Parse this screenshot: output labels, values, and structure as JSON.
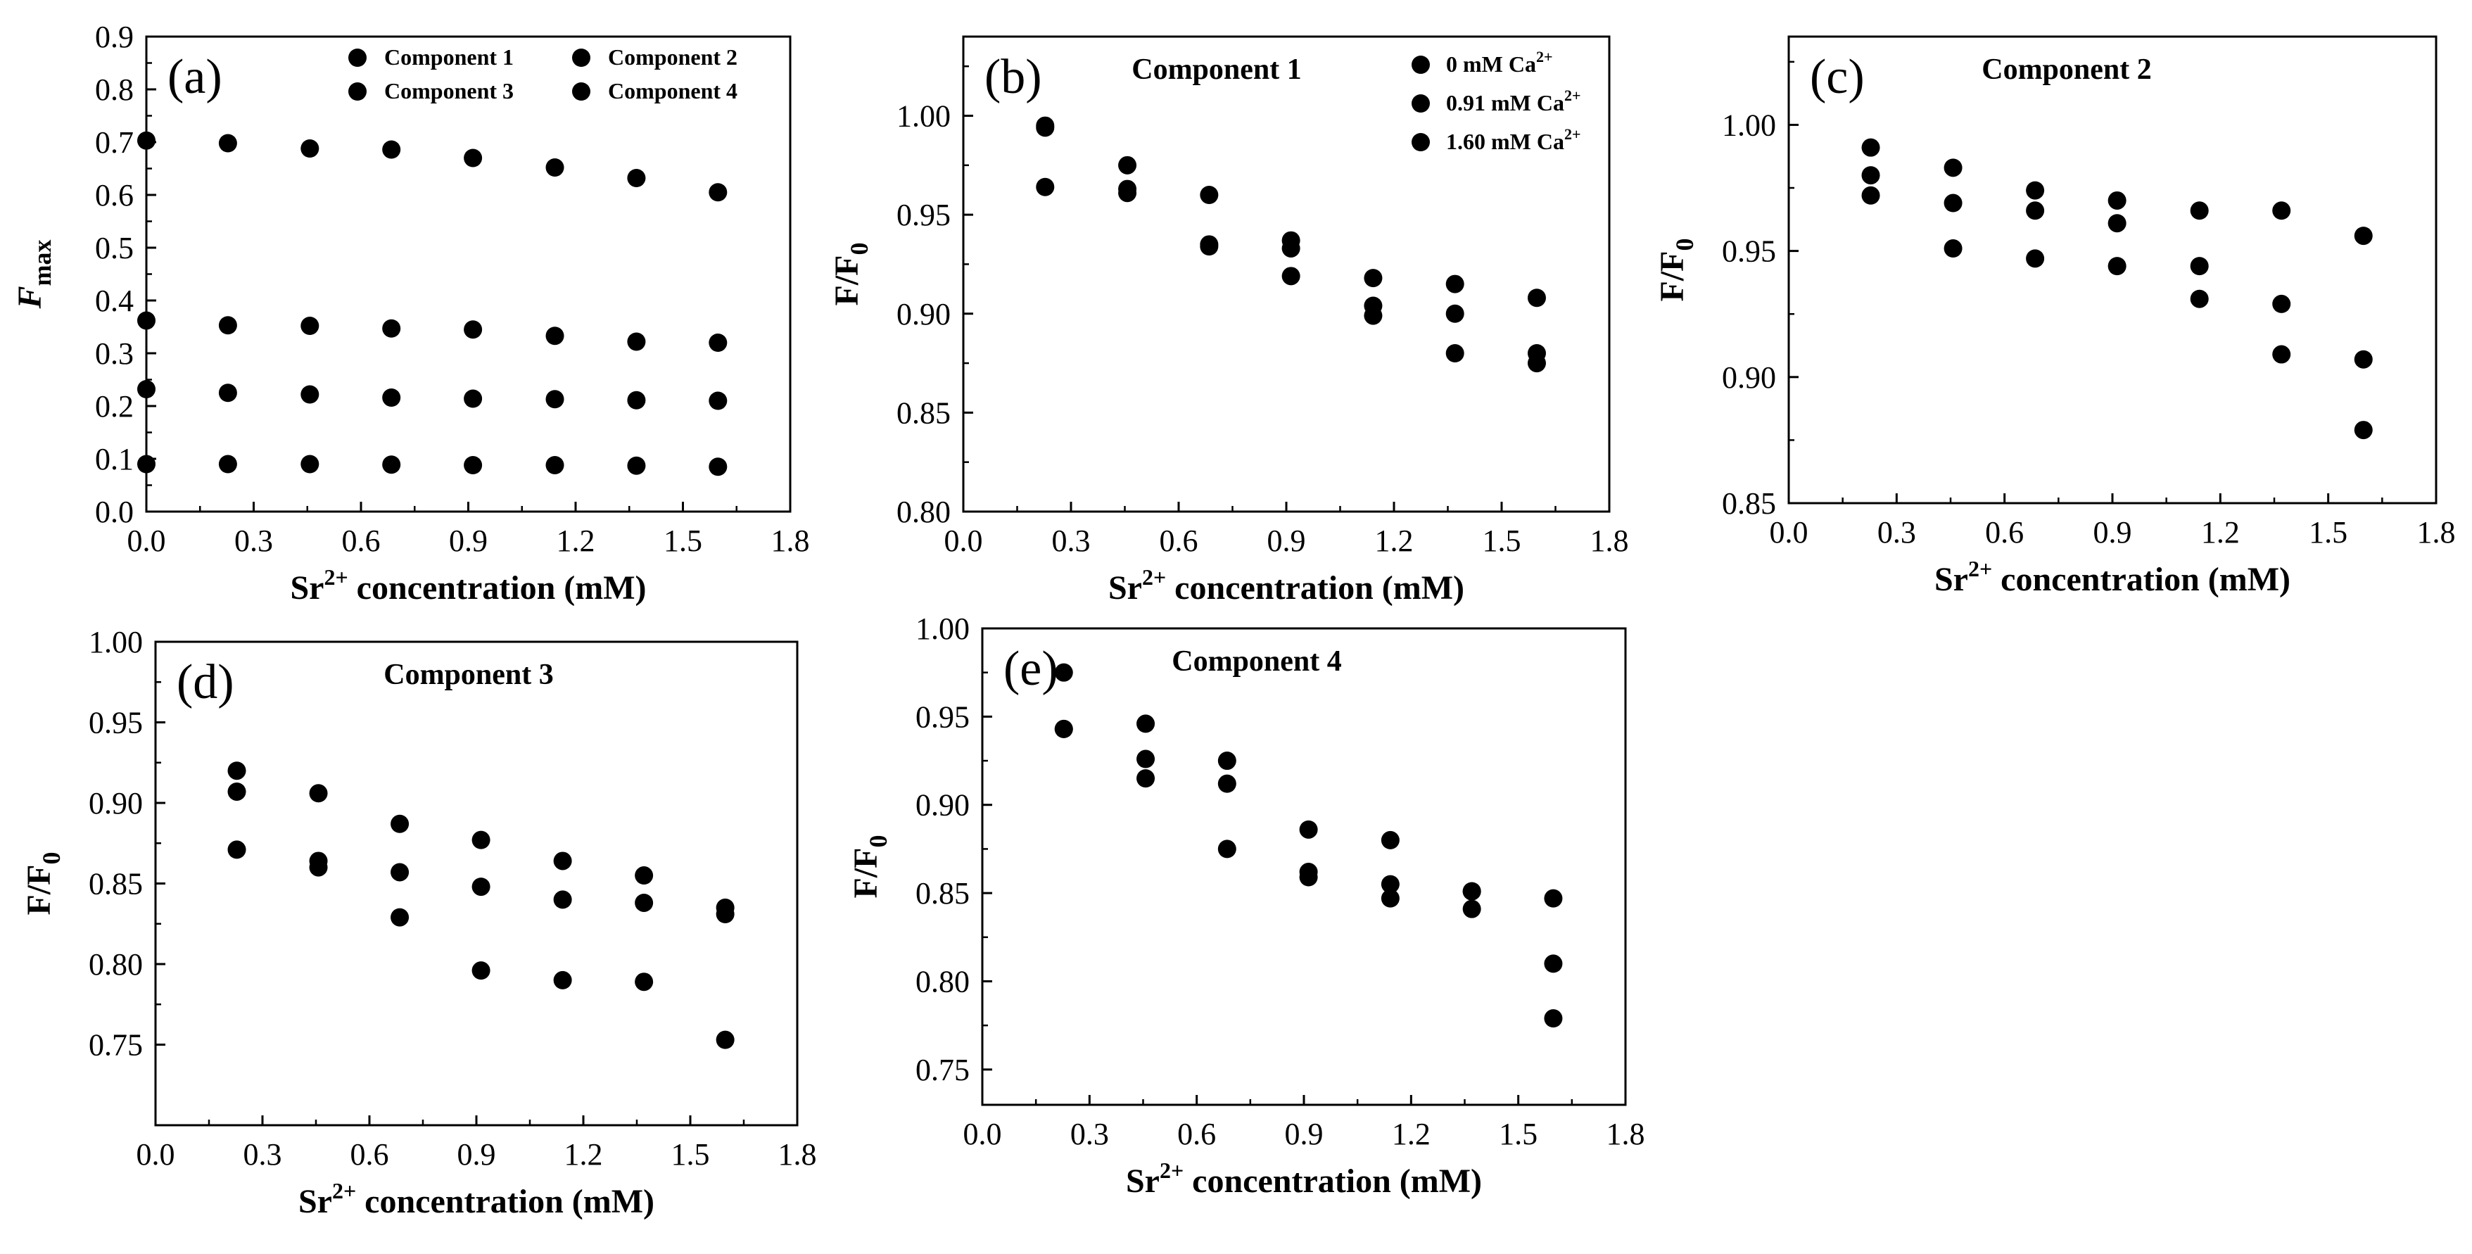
{
  "colors": {
    "Component 1": "#3a3a3a",
    "Component 2": "#d42a2a",
    "Component 3": "#1f5bb5",
    "Component 4": "#2e8b57",
    "0 mM Ca2+": "#3a3a3a",
    "0.91 mM Ca2+": "#d42a2a",
    "1.60 mM Ca2+": "#1f5bb5"
  },
  "chart_data": [
    {
      "id": "a",
      "type": "scatter",
      "panel_label": "(a)",
      "title": "",
      "xlabel": {
        "base": "Sr",
        "sup": "2+",
        "rest": " concentration (mM)"
      },
      "ylabel": {
        "base": "F",
        "sub": "max",
        "italic_base": true
      },
      "xlim": [
        0,
        1.8
      ],
      "xticks": [
        "0.0",
        "0.3",
        "0.6",
        "0.9",
        "1.2",
        "1.5",
        "1.8"
      ],
      "ylim": [
        0,
        0.9
      ],
      "yticks": [
        "0.0",
        "0.1",
        "0.2",
        "0.3",
        "0.4",
        "0.5",
        "0.6",
        "0.7",
        "0.8",
        "0.9"
      ],
      "x": [
        0,
        0.228,
        0.457,
        0.685,
        0.913,
        1.142,
        1.37,
        1.598
      ],
      "legend": {
        "placement": "top-right",
        "columns": 2
      },
      "series": [
        {
          "name": "Component 1",
          "values": [
            0.703,
            0.698,
            0.688,
            0.686,
            0.67,
            0.652,
            0.632,
            0.605
          ]
        },
        {
          "name": "Component 2",
          "values": [
            0.232,
            0.225,
            0.222,
            0.216,
            0.214,
            0.213,
            0.211,
            0.21
          ]
        },
        {
          "name": "Component 3",
          "values": [
            0.09,
            0.09,
            0.09,
            0.089,
            0.088,
            0.088,
            0.087,
            0.085
          ]
        },
        {
          "name": "Component 4",
          "values": [
            0.362,
            0.353,
            0.352,
            0.347,
            0.345,
            0.333,
            0.322,
            0.32
          ]
        }
      ]
    },
    {
      "id": "b",
      "type": "scatter",
      "panel_label": "(b)",
      "title": "Component 1",
      "xlabel": {
        "base": "Sr",
        "sup": "2+",
        "rest": " concentration (mM)"
      },
      "ylabel": {
        "base": "F/F",
        "sub": "0"
      },
      "xlim": [
        0,
        1.8
      ],
      "xticks": [
        "0.0",
        "0.3",
        "0.6",
        "0.9",
        "1.2",
        "1.5",
        "1.8"
      ],
      "ylim": [
        0.8,
        1.04
      ],
      "yticks": [
        "0.80",
        "0.85",
        "0.90",
        "0.95",
        "1.00"
      ],
      "x": [
        0.228,
        0.457,
        0.685,
        0.913,
        1.142,
        1.37,
        1.598
      ],
      "legend": {
        "placement": "top-right",
        "columns": 1
      },
      "series": [
        {
          "name": "0 mM Ca",
          "sup": "2+",
          "color_key": "0 mM Ca2+",
          "values": [
            0.995,
            0.975,
            0.935,
            0.919,
            0.918,
            0.915,
            0.908
          ]
        },
        {
          "name": "0.91 mM Ca",
          "sup": "2+",
          "color_key": "0.91 mM Ca2+",
          "values": [
            0.964,
            0.961,
            0.934,
            0.933,
            0.899,
            0.88,
            0.88
          ]
        },
        {
          "name": "1.60 mM Ca",
          "sup": "2+",
          "color_key": "1.60 mM Ca2+",
          "values": [
            0.994,
            0.963,
            0.96,
            0.937,
            0.904,
            0.9,
            0.875
          ]
        }
      ]
    },
    {
      "id": "c",
      "type": "scatter",
      "panel_label": "(c)",
      "title": "Component 2",
      "xlabel": {
        "base": "Sr",
        "sup": "2+",
        "rest": " concentration (mM)"
      },
      "ylabel": {
        "base": "F/F",
        "sub": "0"
      },
      "xlim": [
        0,
        1.8
      ],
      "xticks": [
        "0.0",
        "0.3",
        "0.6",
        "0.9",
        "1.2",
        "1.5",
        "1.8"
      ],
      "ylim": [
        0.85,
        1.035
      ],
      "yticks": [
        "0.85",
        "0.90",
        "0.95",
        "1.00"
      ],
      "x": [
        0.228,
        0.457,
        0.685,
        0.913,
        1.142,
        1.37,
        1.598
      ],
      "series": [
        {
          "color_key": "0 mM Ca2+",
          "values": [
            0.991,
            0.983,
            0.974,
            0.97,
            0.966,
            0.966,
            0.956
          ]
        },
        {
          "color_key": "0.91 mM Ca2+",
          "values": [
            0.98,
            0.969,
            0.966,
            0.961,
            0.944,
            0.929,
            0.879
          ]
        },
        {
          "color_key": "1.60 mM Ca2+",
          "values": [
            0.972,
            0.951,
            0.947,
            0.944,
            0.931,
            0.909,
            0.907
          ]
        }
      ]
    },
    {
      "id": "d",
      "type": "scatter",
      "panel_label": "(d)",
      "title": "Component 3",
      "xlabel": {
        "base": "Sr",
        "sup": "2+",
        "rest": " concentration (mM)"
      },
      "ylabel": {
        "base": "F/F",
        "sub": "0"
      },
      "xlim": [
        0,
        1.8
      ],
      "xticks": [
        "0.0",
        "0.3",
        "0.6",
        "0.9",
        "1.2",
        "1.5",
        "1.8"
      ],
      "ylim": [
        0.7,
        1.0
      ],
      "yticks": [
        "0.75",
        "0.80",
        "0.85",
        "0.90",
        "0.95",
        "1.00"
      ],
      "x": [
        0.228,
        0.457,
        0.685,
        0.913,
        1.142,
        1.37,
        1.598
      ],
      "series": [
        {
          "color_key": "0 mM Ca2+",
          "values": [
            0.907,
            0.906,
            0.887,
            0.877,
            0.864,
            0.855,
            0.835
          ]
        },
        {
          "color_key": "0.91 mM Ca2+",
          "values": [
            0.92,
            0.86,
            0.829,
            0.796,
            0.79,
            0.789,
            0.753
          ]
        },
        {
          "color_key": "1.60 mM Ca2+",
          "values": [
            0.871,
            0.864,
            0.857,
            0.848,
            0.84,
            0.838,
            0.831
          ]
        }
      ]
    },
    {
      "id": "e",
      "type": "scatter",
      "panel_label": "(e)",
      "title": "Component 4",
      "xlabel": {
        "base": "Sr",
        "sup": "2+",
        "rest": " concentration (mM)"
      },
      "ylabel": {
        "base": "F/F",
        "sub": "0"
      },
      "xlim": [
        0,
        1.8
      ],
      "xticks": [
        "0.0",
        "0.3",
        "0.6",
        "0.9",
        "1.2",
        "1.5",
        "1.8"
      ],
      "ylim": [
        0.73,
        1.0
      ],
      "yticks": [
        "0.75",
        "0.80",
        "0.85",
        "0.90",
        "0.95",
        "1.00"
      ],
      "x": [
        0.228,
        0.457,
        0.685,
        0.913,
        1.142,
        1.37,
        1.598
      ],
      "series": [
        {
          "color_key": "0 mM Ca2+",
          "values": [
            0.943,
            0.915,
            0.875,
            0.859,
            0.847,
            0.841,
            0.81
          ]
        },
        {
          "color_key": "0.91 mM Ca2+",
          "values": [
            0.943,
            0.926,
            0.925,
            0.886,
            0.88,
            0.851,
            0.779
          ]
        },
        {
          "color_key": "1.60 mM Ca2+",
          "values": [
            0.975,
            0.946,
            0.912,
            0.862,
            0.855,
            0.851,
            0.847
          ]
        }
      ]
    }
  ]
}
